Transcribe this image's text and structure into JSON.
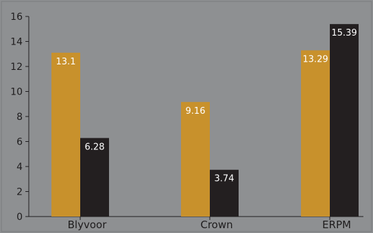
{
  "chart_data": {
    "type": "bar",
    "categories": [
      "Blyvoor",
      "Crown",
      "ERPM"
    ],
    "series": [
      {
        "values": [
          13.1,
          9.16,
          13.29
        ],
        "color": "#c8912c"
      },
      {
        "values": [
          6.28,
          3.74,
          15.39
        ],
        "color": "#231f20"
      }
    ],
    "ylim": [
      0,
      16
    ],
    "yticks": [
      0,
      2,
      4,
      6,
      8,
      10,
      12,
      14,
      16
    ],
    "grid": false,
    "title": "",
    "xlabel": "",
    "ylabel": ""
  }
}
